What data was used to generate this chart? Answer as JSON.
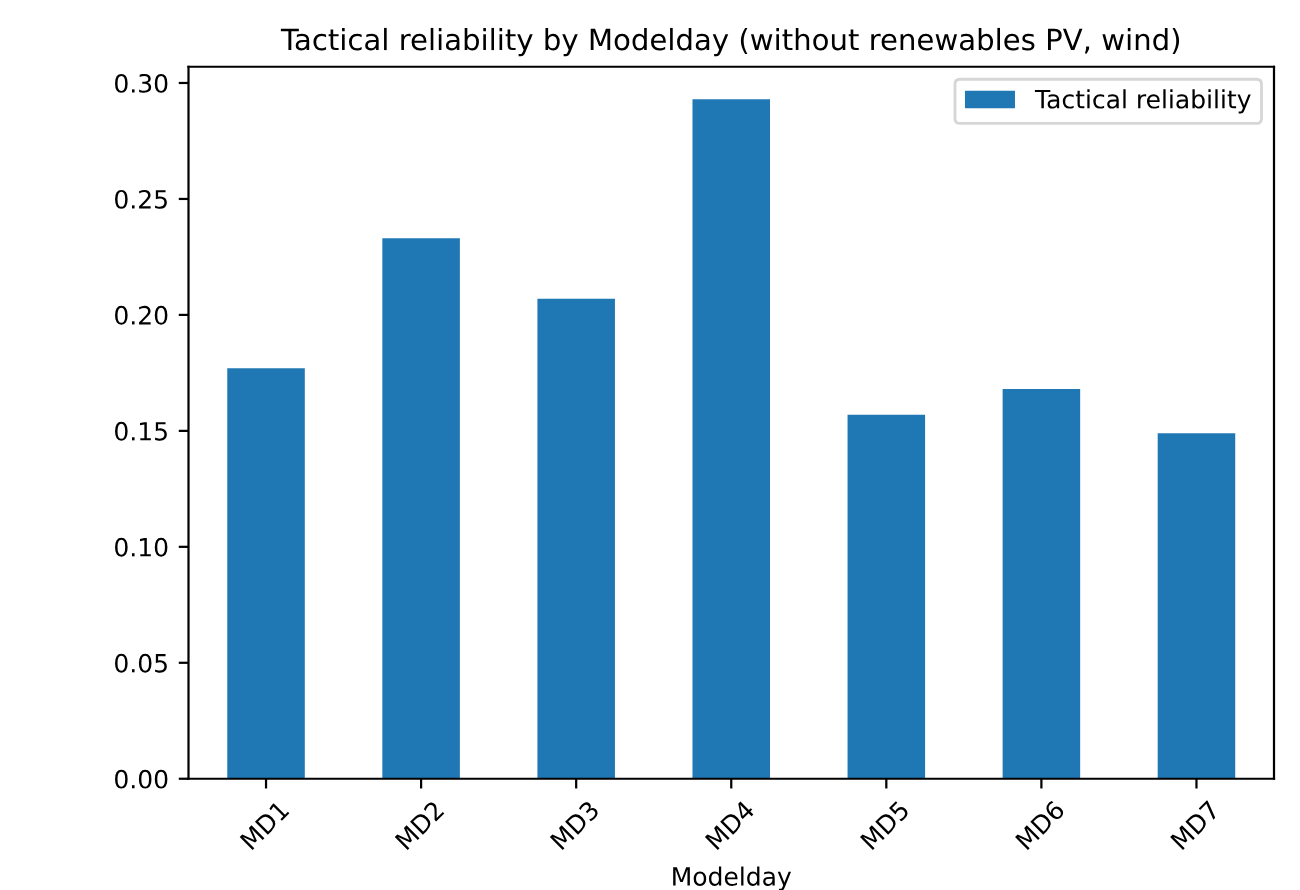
{
  "chart_data": {
    "type": "bar",
    "title": "Tactical reliability by Modelday (without renewables PV, wind)",
    "xlabel": "Modelday",
    "categories": [
      "MD1",
      "MD2",
      "MD3",
      "MD4",
      "MD5",
      "MD6",
      "MD7"
    ],
    "series": [
      {
        "name": "Tactical reliability",
        "color": "#1f77b4",
        "values": [
          0.177,
          0.233,
          0.207,
          0.293,
          0.157,
          0.168,
          0.149
        ]
      }
    ],
    "ylim": [
      0,
      0.307
    ],
    "yticks": [
      {
        "value": 0,
        "label": "0.00"
      },
      {
        "value": 0.05,
        "label": "0.05"
      },
      {
        "value": 0.1,
        "label": "0.10"
      },
      {
        "value": 0.15,
        "label": "0.15"
      },
      {
        "value": 0.2,
        "label": "0.20"
      },
      {
        "value": 0.25,
        "label": "0.25"
      },
      {
        "value": 0.3,
        "label": "0.30"
      }
    ],
    "legend": "top right",
    "grid": false
  }
}
